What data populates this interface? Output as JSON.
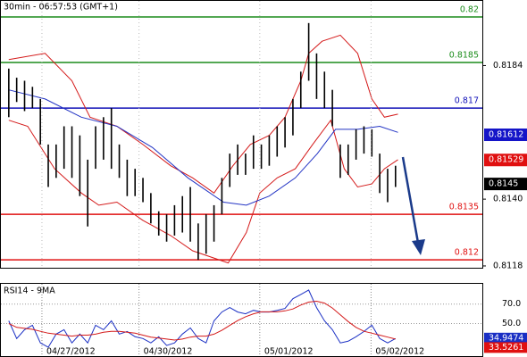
{
  "chart_data": [
    {
      "type": "price-bars",
      "title": "30min - 06:57:53 (GMT+1)",
      "x": [
        1,
        2,
        3,
        4,
        5,
        6,
        7,
        8,
        9,
        10,
        11,
        12,
        13,
        14,
        15,
        16,
        17,
        18,
        19,
        20,
        21,
        22,
        23,
        24,
        25,
        26,
        27,
        28,
        29,
        30,
        31,
        32,
        33,
        34,
        35,
        36,
        37,
        38,
        39,
        40,
        41,
        42,
        43,
        44,
        45,
        46,
        47,
        48,
        49,
        50
      ],
      "high": [
        0.8183,
        0.818,
        0.8179,
        0.8177,
        0.8173,
        0.8158,
        0.8158,
        0.8164,
        0.8164,
        0.8161,
        0.8153,
        0.8164,
        0.8167,
        0.817,
        0.8158,
        0.8153,
        0.815,
        0.8147,
        0.8142,
        0.8136,
        0.8135,
        0.8138,
        0.8141,
        0.8144,
        0.8132,
        0.8135,
        0.8138,
        0.8147,
        0.8155,
        0.8158,
        0.8155,
        0.8161,
        0.8158,
        0.8161,
        0.8164,
        0.8167,
        0.8173,
        0.8182,
        0.8198,
        0.8188,
        0.8182,
        0.8176,
        0.8158,
        0.8158,
        0.8163,
        0.8164,
        0.8163,
        0.8155,
        0.815,
        0.8151
      ],
      "low": [
        0.8167,
        0.8172,
        0.8169,
        0.817,
        0.8158,
        0.8144,
        0.8147,
        0.815,
        0.8147,
        0.8141,
        0.8131,
        0.815,
        0.8153,
        0.815,
        0.8147,
        0.8141,
        0.8141,
        0.8139,
        0.8132,
        0.8128,
        0.8126,
        0.8128,
        0.8129,
        0.8126,
        0.812,
        0.8122,
        0.8126,
        0.8135,
        0.8144,
        0.8148,
        0.8148,
        0.815,
        0.815,
        0.8151,
        0.8154,
        0.8157,
        0.8161,
        0.817,
        0.8179,
        0.8173,
        0.817,
        0.8164,
        0.8147,
        0.8148,
        0.8153,
        0.8155,
        0.8154,
        0.8142,
        0.8139,
        0.8144
      ],
      "bar_color": "#000000",
      "lines": [
        {
          "color": "#d41a1a",
          "x": [
            1,
            5.6,
            9,
            11.3,
            14.7,
            18,
            21.5,
            24.3,
            27,
            29.4,
            31.6,
            34,
            36,
            38,
            39,
            40.7,
            43,
            45.2,
            47,
            48.6,
            50.3
          ],
          "values": [
            0.8186,
            0.8188,
            0.8179,
            0.8167,
            0.8164,
            0.8158,
            0.8151,
            0.8147,
            0.8142,
            0.8151,
            0.8158,
            0.8161,
            0.8167,
            0.8179,
            0.8188,
            0.8192,
            0.8194,
            0.8188,
            0.8173,
            0.8167,
            0.8168
          ]
        },
        {
          "color": "#d41a1a",
          "x": [
            1,
            3.4,
            6.8,
            10.2,
            12.4,
            14.7,
            18,
            21.5,
            24.3,
            28.8,
            31.1,
            32.8,
            35,
            37.3,
            39.5,
            41.8,
            43.5,
            45.2,
            47,
            48.6,
            50.3
          ],
          "values": [
            0.8166,
            0.8164,
            0.815,
            0.8142,
            0.8138,
            0.8139,
            0.8133,
            0.8128,
            0.8123,
            0.8119,
            0.8129,
            0.8142,
            0.8147,
            0.815,
            0.8158,
            0.8166,
            0.815,
            0.8144,
            0.8145,
            0.815,
            0.8153
          ]
        },
        {
          "color": "#2233c4",
          "x": [
            1,
            5.6,
            10.2,
            14.7,
            19.2,
            23.7,
            28.2,
            31.1,
            34,
            37.3,
            40.1,
            42.4,
            45.2,
            48,
            50.3
          ],
          "values": [
            0.8176,
            0.8173,
            0.8167,
            0.8164,
            0.8157,
            0.8147,
            0.8139,
            0.8138,
            0.8141,
            0.8147,
            0.8155,
            0.8163,
            0.8163,
            0.8164,
            0.8162
          ]
        }
      ],
      "levels": [
        {
          "value": 0.82,
          "color": "#1a8c1a"
        },
        {
          "value": 0.8185,
          "color": "#1a8c1a"
        },
        {
          "value": 0.817,
          "color": "#1212b8"
        },
        {
          "value": 0.8135,
          "color": "#e01010"
        },
        {
          "value": 0.812,
          "color": "#e01010"
        }
      ],
      "price_boxes": [
        {
          "value": 0.81612,
          "color": "#1515c8"
        },
        {
          "value": 0.81529,
          "color": "#e01010"
        },
        {
          "value": 0.8145,
          "color": "#000000"
        }
      ],
      "xlim": [
        0,
        61
      ],
      "ylim": [
        0.81174,
        0.82053
      ],
      "yticks": [
        0.8184,
        {
          "value": 0.814,
          "label": "0.8140"
        },
        0.8118
      ]
    },
    {
      "type": "rsi",
      "title": "RSI14 - 9MA",
      "x": [
        1,
        2,
        3,
        4,
        5,
        6,
        7,
        8,
        9,
        10,
        11,
        12,
        13,
        14,
        15,
        16,
        17,
        18,
        19,
        20,
        21,
        22,
        23,
        24,
        25,
        26,
        27,
        28,
        29,
        30,
        31,
        32,
        33,
        34,
        35,
        36,
        37,
        38,
        39,
        40,
        41,
        42,
        43,
        44,
        45,
        46,
        47,
        48,
        49,
        50
      ],
      "series": [
        {
          "color": "#1a2fc4",
          "values": [
            52.7,
            34.5,
            43.6,
            48.2,
            30,
            25.5,
            39.1,
            43.6,
            30,
            39.1,
            30,
            48.2,
            43.6,
            52.7,
            39.1,
            41.8,
            36.4,
            34.5,
            30,
            36.4,
            27.3,
            30,
            39.1,
            45.5,
            34.5,
            30,
            52.7,
            61.8,
            66.4,
            61.8,
            60,
            63.6,
            61.8,
            61.8,
            63.6,
            65.5,
            75.5,
            80,
            84.5,
            66.4,
            52.7,
            43.6,
            30,
            31.8,
            36.4,
            41.8,
            48.2,
            34.5,
            30,
            34.5
          ]
        },
        {
          "color": "#d41a1a",
          "values": [
            50,
            46,
            45,
            44,
            42,
            40,
            39,
            38,
            37,
            38,
            38,
            39,
            41,
            42,
            42,
            41,
            40,
            38,
            36,
            35,
            34,
            33,
            34,
            36,
            37,
            37,
            39,
            43,
            48,
            53,
            57,
            60,
            62,
            62,
            62,
            63,
            65,
            69,
            72,
            73,
            71,
            66,
            59,
            52,
            46,
            42,
            40,
            38,
            36,
            34
          ]
        }
      ],
      "value_boxes": [
        {
          "value": 34.9474,
          "color": "#1a2fc4"
        },
        {
          "value": 33.5261,
          "color": "#e01010"
        }
      ],
      "xlim": [
        0,
        61
      ],
      "ylim": [
        16.4,
        90.9
      ],
      "yticks": [
        {
          "value": 70,
          "label": "70.0"
        },
        {
          "value": 50,
          "label": "50.0"
        }
      ],
      "xticks": [
        {
          "value": 5.2,
          "label": "04/27/2012"
        },
        {
          "value": 17.5,
          "label": "04/30/2012"
        },
        {
          "value": 32.8,
          "label": "05/01/2012"
        },
        {
          "value": 46.9,
          "label": "05/02/2012"
        }
      ]
    }
  ]
}
